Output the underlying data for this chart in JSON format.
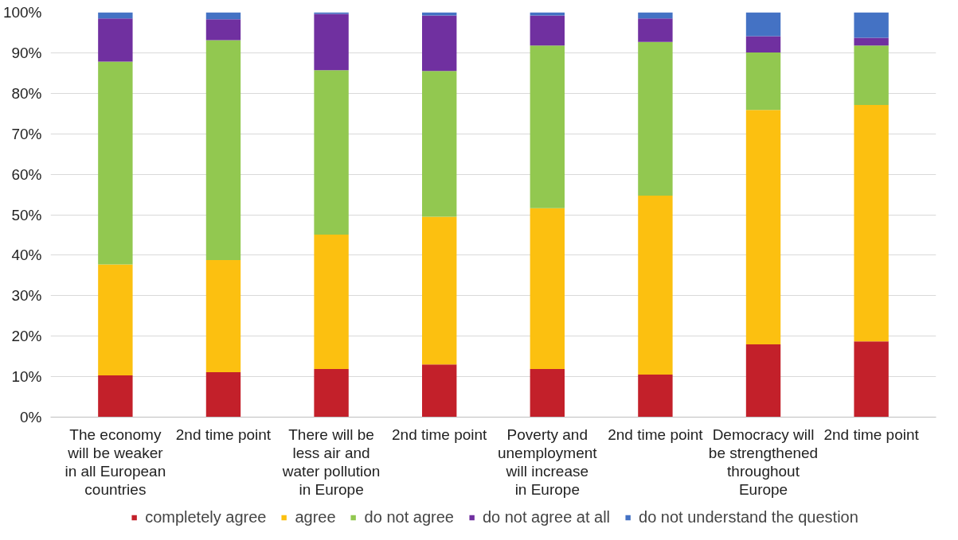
{
  "chart_data": {
    "type": "bar",
    "stacked": true,
    "categories": [
      "The economy will be weaker in all European countries",
      "2nd time point",
      "There will be less air and water pollution in Europe",
      "2nd time point",
      "Poverty and unemployment will increase in Europe",
      "2nd time point",
      "Democracy will be strengthened throughout Europe",
      "2nd time point"
    ],
    "series": [
      {
        "name": "completely agree",
        "color": "#c3202a",
        "values": [
          10.3,
          11.1,
          11.9,
          13.0,
          11.9,
          10.5,
          18.0,
          18.7
        ]
      },
      {
        "name": "agree",
        "color": "#fcc010",
        "values": [
          27.4,
          27.7,
          33.2,
          36.5,
          39.7,
          44.2,
          57.9,
          58.4
        ]
      },
      {
        "name": "do not agree",
        "color": "#92c850",
        "values": [
          50.1,
          54.3,
          40.6,
          36.0,
          40.2,
          38.0,
          14.2,
          14.7
        ]
      },
      {
        "name": "do not agree at all",
        "color": "#7030a0",
        "values": [
          10.7,
          5.2,
          13.9,
          13.7,
          7.4,
          5.8,
          4.0,
          1.9
        ]
      },
      {
        "name": "do not understand the question",
        "color": "#4472c4",
        "values": [
          1.5,
          1.7,
          0.4,
          0.8,
          0.8,
          1.5,
          5.9,
          6.3
        ]
      }
    ],
    "ylim": [
      0,
      100
    ],
    "yticks": [
      {
        "value": 0,
        "label": "0%"
      },
      {
        "value": 10,
        "label": "10%"
      },
      {
        "value": 20,
        "label": "20%"
      },
      {
        "value": 30,
        "label": "30%"
      },
      {
        "value": 40,
        "label": "40%"
      },
      {
        "value": 50,
        "label": "50%"
      },
      {
        "value": 60,
        "label": "60%"
      },
      {
        "value": 70,
        "label": "70%"
      },
      {
        "value": 80,
        "label": "80%"
      },
      {
        "value": 90,
        "label": "90%"
      },
      {
        "value": 100,
        "label": "100%"
      }
    ],
    "grid": "y",
    "legend": "bottom"
  }
}
